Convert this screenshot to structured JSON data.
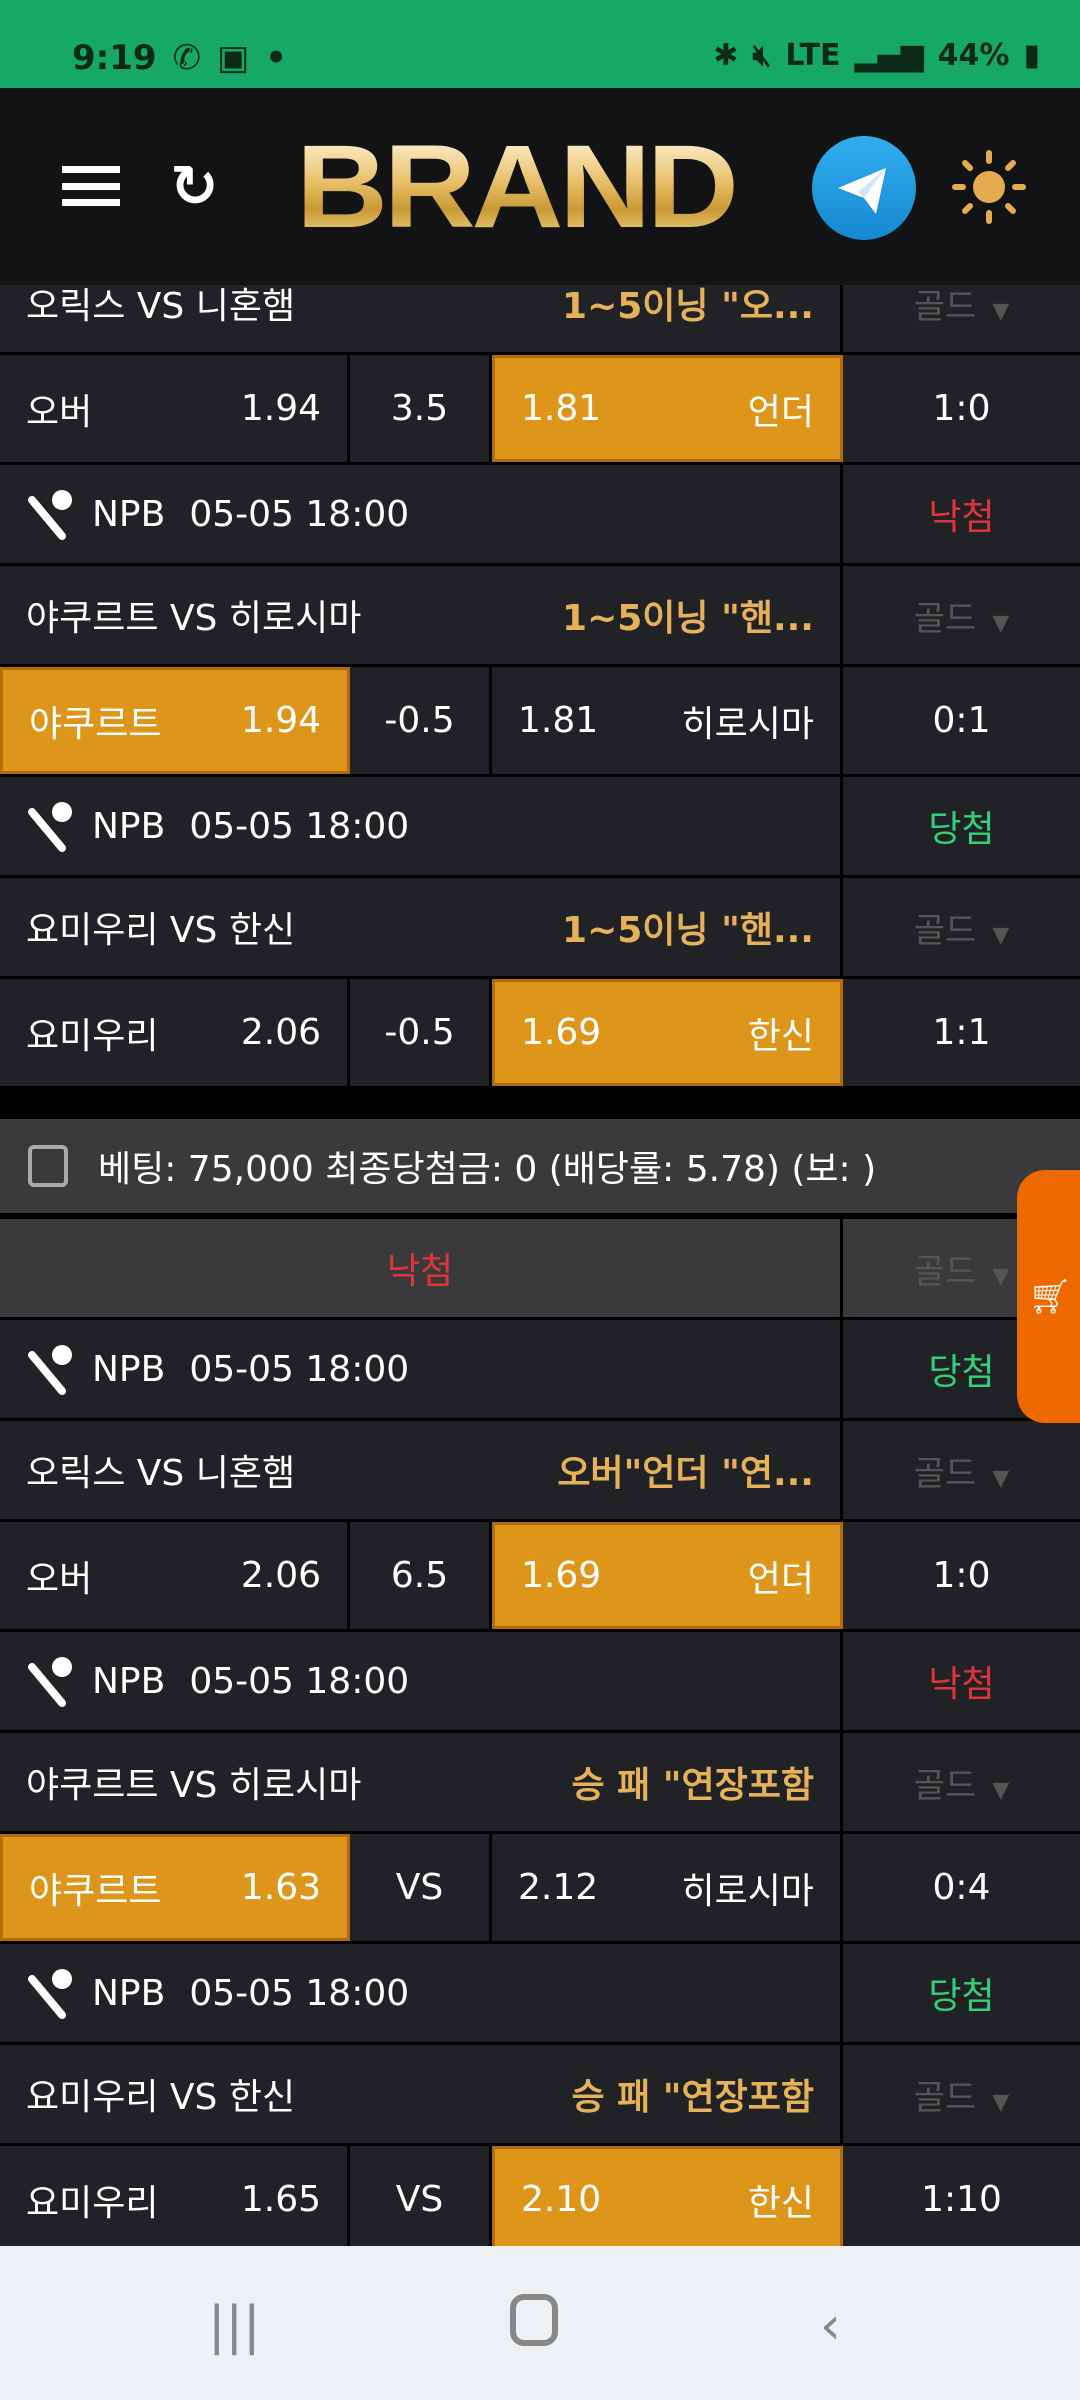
{
  "status_bar": {
    "time": "9:19",
    "battery": "44%",
    "network": "LTE"
  },
  "header": {
    "logo": "BRAND",
    "icons": [
      "menu-icon",
      "refresh-icon",
      "telegram-icon",
      "sun-icon"
    ]
  },
  "colors": {
    "status_bar": "#16a866",
    "pick": "#de961a",
    "market": "#e7b15a",
    "lose": "#e0343a",
    "win": "#33d07c",
    "cart": "#ee6a00"
  },
  "slip1": {
    "rows": [
      {
        "type": "title",
        "match": "오릭스 VS 니혼햄",
        "market": "1~5이닝 \"오...",
        "grade": "골드"
      },
      {
        "type": "odds",
        "home": "오버",
        "home_odds": "1.94",
        "line": "3.5",
        "away_odds": "1.81",
        "away": "언더",
        "score": "1:0",
        "pick": "away"
      },
      {
        "type": "league",
        "league": "NPB",
        "datetime": "05-05 18:00",
        "result": "낙첨",
        "result_type": "lose"
      },
      {
        "type": "title",
        "match": "야쿠르트 VS 히로시마",
        "market": "1~5이닝 \"핸...",
        "grade": "골드"
      },
      {
        "type": "odds",
        "home": "야쿠르트",
        "home_odds": "1.94",
        "line": "-0.5",
        "away_odds": "1.81",
        "away": "히로시마",
        "score": "0:1",
        "pick": "home"
      },
      {
        "type": "league",
        "league": "NPB",
        "datetime": "05-05 18:00",
        "result": "당첨",
        "result_type": "win"
      },
      {
        "type": "title",
        "match": "요미우리 VS 한신",
        "market": "1~5이닝 \"핸...",
        "grade": "골드"
      },
      {
        "type": "odds",
        "home": "요미우리",
        "home_odds": "2.06",
        "line": "-0.5",
        "away_odds": "1.69",
        "away": "한신",
        "score": "1:1",
        "pick": "away"
      }
    ]
  },
  "slip2": {
    "summary": "베팅: 75,000 최종당첨금: 0 (배당률: 5.78) (보: )",
    "status": {
      "result": "낙첨",
      "grade": "골드"
    },
    "rows": [
      {
        "type": "league",
        "league": "NPB",
        "datetime": "05-05 18:00",
        "result": "당첨",
        "result_type": "win"
      },
      {
        "type": "title",
        "match": "오릭스 VS 니혼햄",
        "market": "오버\"언더 \"연...",
        "grade": "골드"
      },
      {
        "type": "odds",
        "home": "오버",
        "home_odds": "2.06",
        "line": "6.5",
        "away_odds": "1.69",
        "away": "언더",
        "score": "1:0",
        "pick": "away"
      },
      {
        "type": "league",
        "league": "NPB",
        "datetime": "05-05 18:00",
        "result": "낙첨",
        "result_type": "lose"
      },
      {
        "type": "title",
        "match": "야쿠르트 VS 히로시마",
        "market": "승 패 \"연장포함",
        "grade": "골드"
      },
      {
        "type": "odds",
        "home": "야쿠르트",
        "home_odds": "1.63",
        "line": "VS",
        "away_odds": "2.12",
        "away": "히로시마",
        "score": "0:4",
        "pick": "home"
      },
      {
        "type": "league",
        "league": "NPB",
        "datetime": "05-05 18:00",
        "result": "당첨",
        "result_type": "win"
      },
      {
        "type": "title",
        "match": "요미우리 VS 한신",
        "market": "승 패 \"연장포함",
        "grade": "골드"
      },
      {
        "type": "odds",
        "home": "요미우리",
        "home_odds": "1.65",
        "line": "VS",
        "away_odds": "2.10",
        "away": "한신",
        "score": "1:10",
        "pick": "away"
      }
    ]
  }
}
